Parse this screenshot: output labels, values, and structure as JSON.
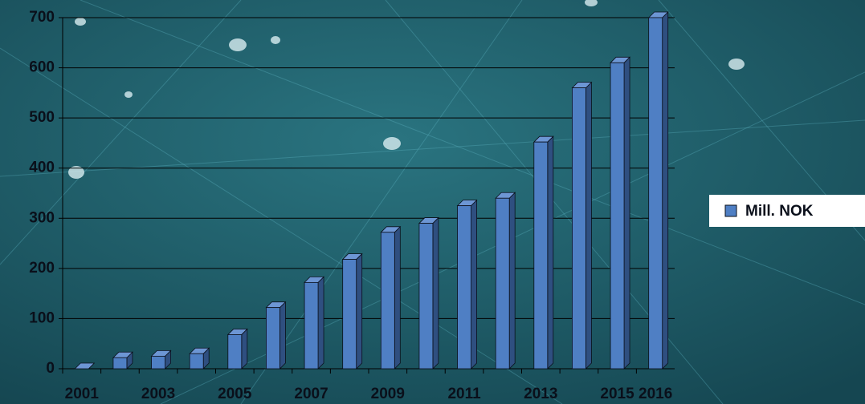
{
  "chart_data": {
    "type": "bar",
    "categories": [
      "2001",
      null,
      "2003",
      null,
      "2005",
      null,
      "2007",
      null,
      "2009",
      null,
      "2011",
      null,
      "2013",
      null,
      "2015",
      "2016"
    ],
    "series": [
      {
        "name": "Mill. NOK",
        "color": "#4f7fc4",
        "values": [
          0,
          22,
          25,
          30,
          68,
          122,
          172,
          218,
          272,
          290,
          325,
          340,
          452,
          560,
          610,
          700
        ]
      }
    ],
    "ylim": [
      0,
      700
    ],
    "yticks": [
      0,
      100,
      200,
      300,
      400,
      500,
      600,
      700
    ],
    "grid": true,
    "legend": "right"
  }
}
